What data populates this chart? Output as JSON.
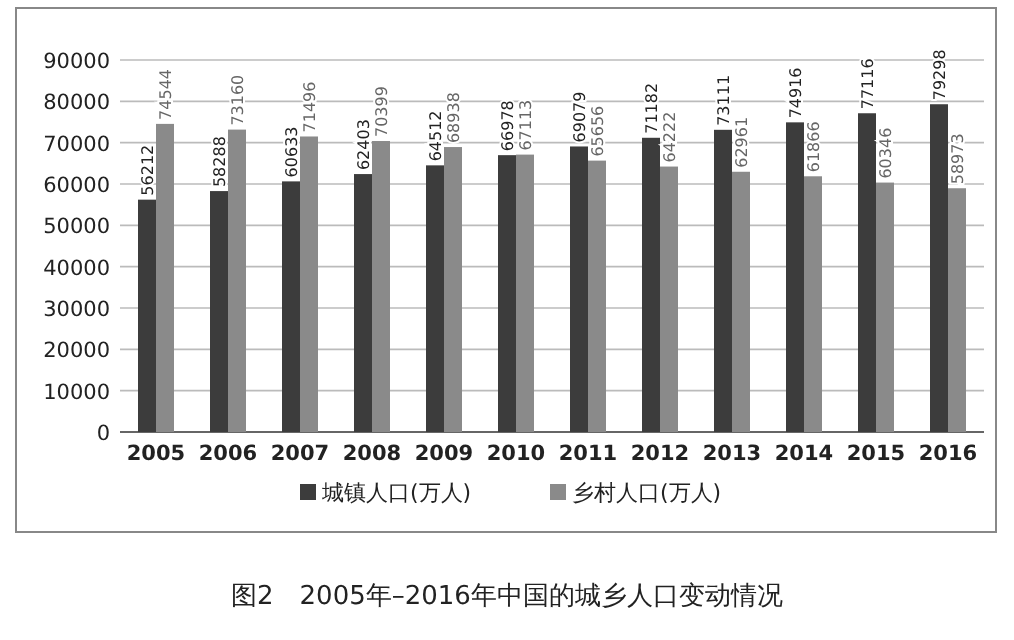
{
  "chart_data": {
    "type": "bar",
    "title": "图2　2005年–2016年中国的城乡人口变动情况",
    "categories": [
      "2005",
      "2006",
      "2007",
      "2008",
      "2009",
      "2010",
      "2011",
      "2012",
      "2013",
      "2014",
      "2015",
      "2016"
    ],
    "series": [
      {
        "name": "城镇人口(万人)",
        "color": "#3c3c3c",
        "values": [
          56212,
          58288,
          60633,
          62403,
          64512,
          66978,
          69079,
          71182,
          73111,
          74916,
          77116,
          79298
        ]
      },
      {
        "name": "乡村人口(万人)",
        "color": "#8a8a8a",
        "values": [
          74544,
          73160,
          71496,
          70399,
          68938,
          67113,
          65656,
          64222,
          62961,
          61866,
          60346,
          58973
        ]
      }
    ],
    "ylim": [
      0,
      90000
    ],
    "yticks": [
      0,
      10000,
      20000,
      30000,
      40000,
      50000,
      60000,
      70000,
      80000,
      90000
    ],
    "grid": "y",
    "legend": "bottom",
    "data_labels": true
  }
}
